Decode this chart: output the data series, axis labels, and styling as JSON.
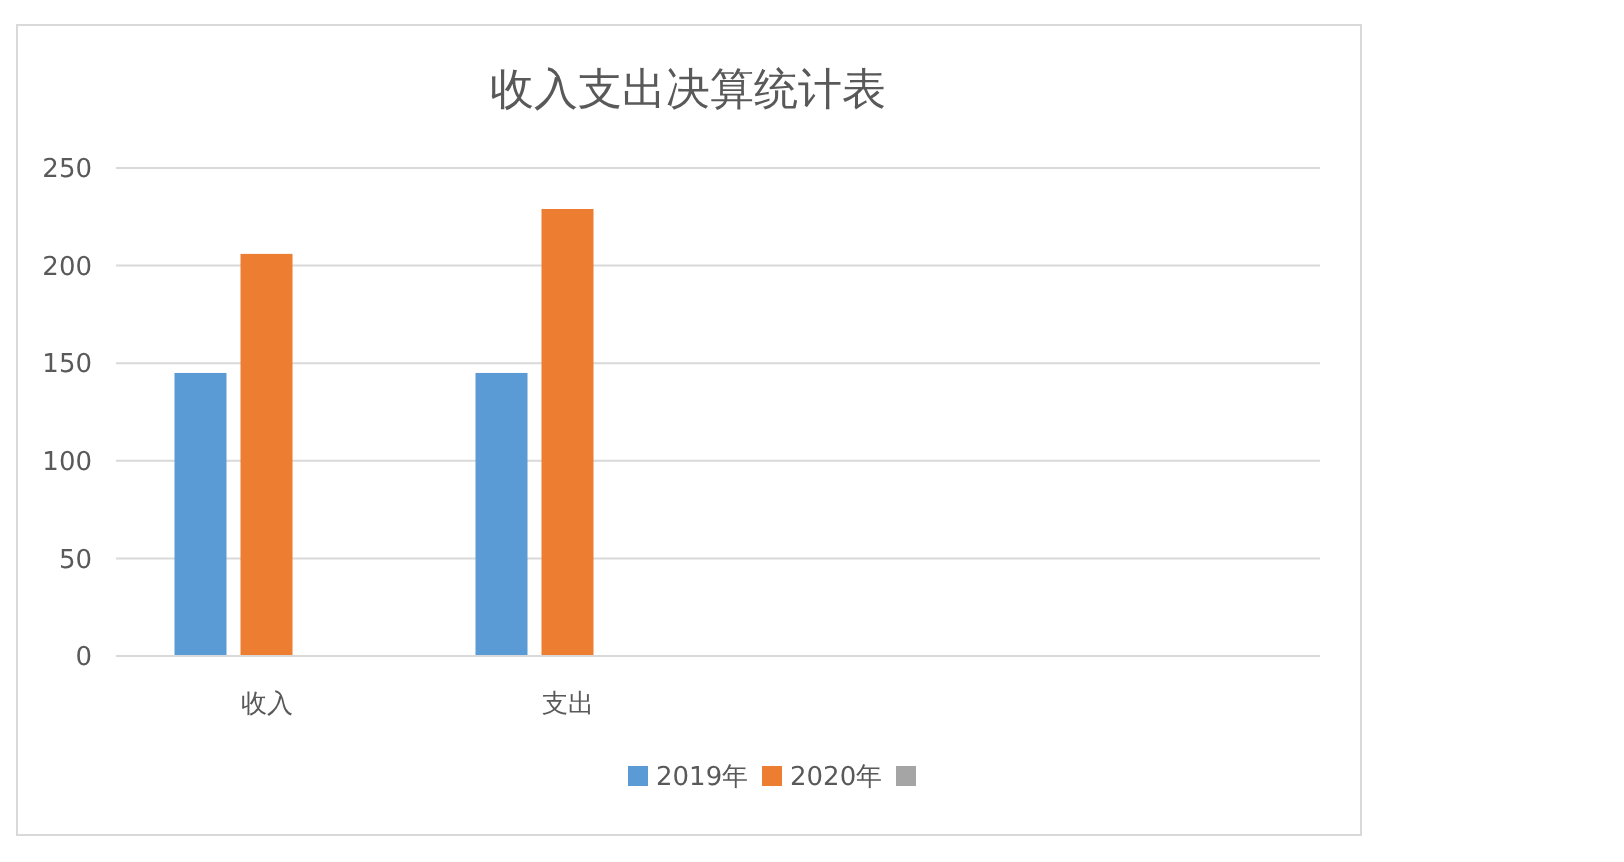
{
  "chart_data": {
    "type": "bar",
    "title": "收入支出决算统计表",
    "categories": [
      "收入",
      "支出",
      null,
      null
    ],
    "series": [
      {
        "name": "2019年",
        "color": "#5b9bd5",
        "values": [
          145,
          145,
          null,
          null
        ]
      },
      {
        "name": "2020年",
        "color": "#ed7d31",
        "values": [
          206,
          229,
          null,
          null
        ]
      },
      {
        "color": "#a5a5a5",
        "values": [
          null,
          null,
          null,
          null
        ]
      }
    ],
    "ylim": [
      0,
      250
    ],
    "yticks": [
      0,
      50,
      100,
      150,
      200,
      250
    ],
    "grid": "y",
    "legend": "bottom"
  }
}
